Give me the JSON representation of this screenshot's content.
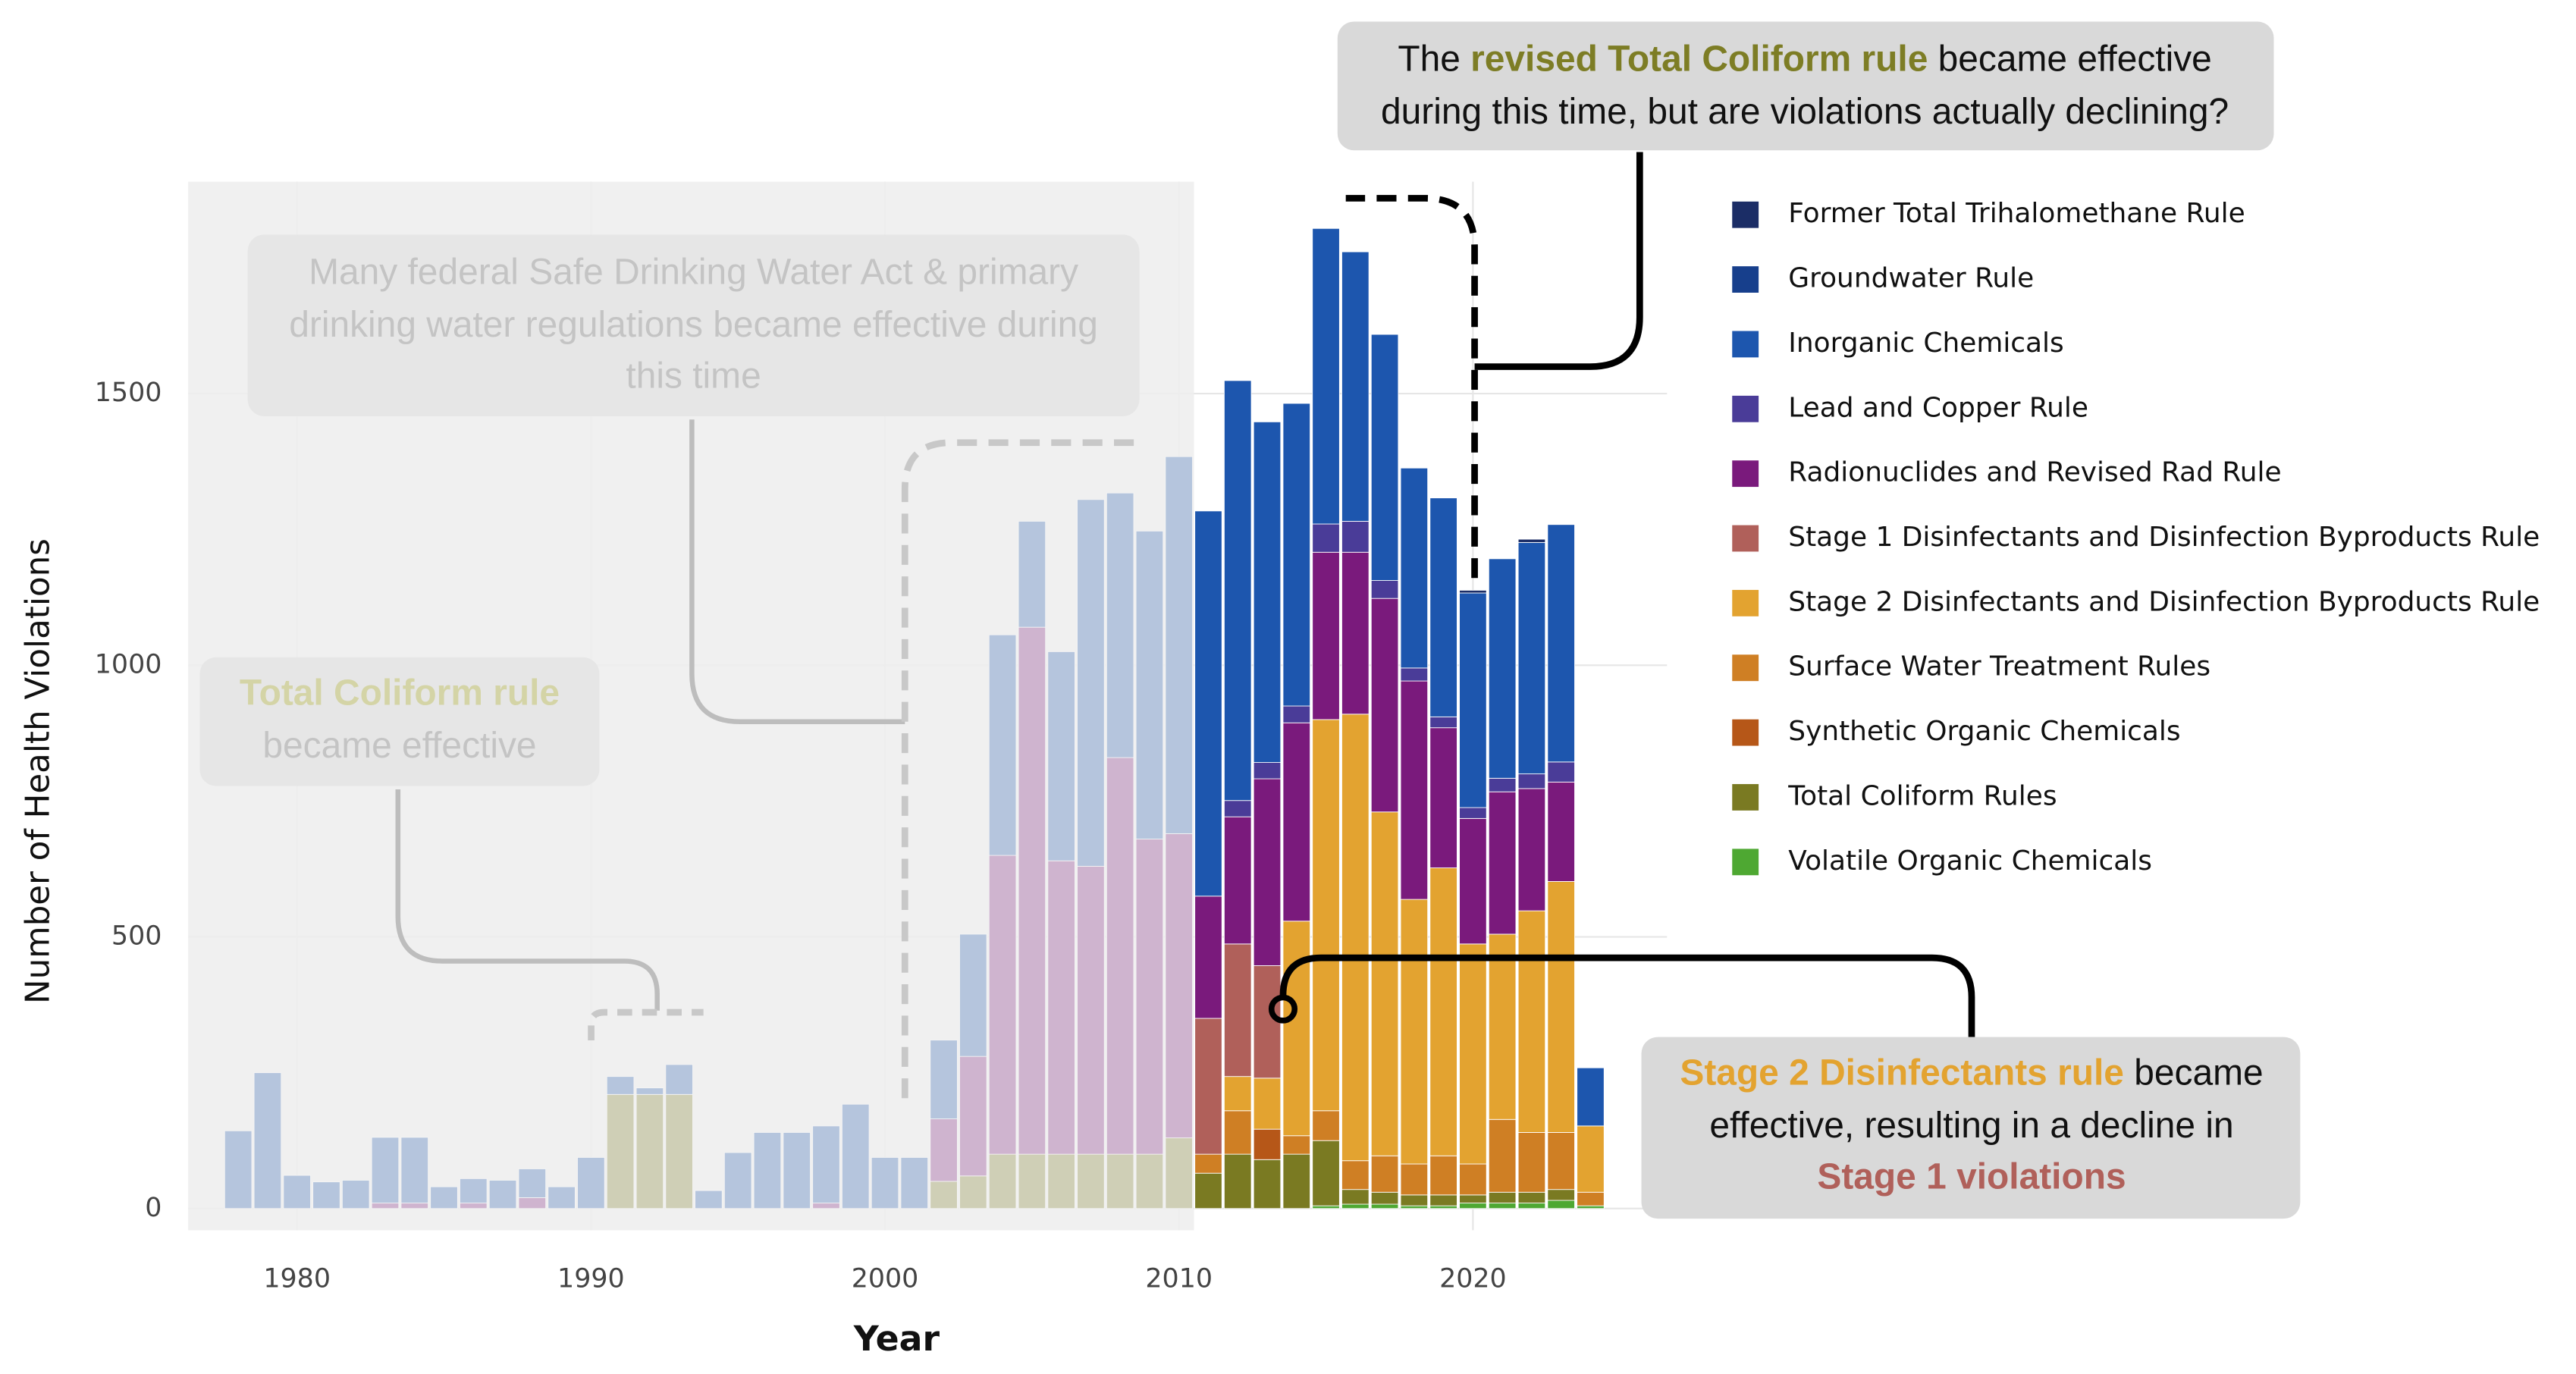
{
  "chart_data": {
    "type": "stacked_bar",
    "xlabel": "Year",
    "ylabel": "Number of Health Violations",
    "x": [
      1978,
      1979,
      1980,
      1981,
      1982,
      1983,
      1984,
      1985,
      1986,
      1987,
      1988,
      1989,
      1990,
      1991,
      1992,
      1993,
      1994,
      1995,
      1996,
      1997,
      1998,
      1999,
      2000,
      2001,
      2002,
      2003,
      2004,
      2005,
      2006,
      2007,
      2008,
      2009,
      2010,
      2011,
      2012,
      2013,
      2014,
      2015,
      2016,
      2017,
      2018,
      2019,
      2020,
      2021,
      2022,
      2023,
      2024
    ],
    "xlim": [
      1976.3,
      2026.6
    ],
    "xticks": [
      1980,
      1990,
      2000,
      2010,
      2020
    ],
    "ylim": [
      -40,
      1890
    ],
    "yticks": [
      0,
      500,
      1000,
      1500
    ],
    "grid": true,
    "legend": "right",
    "series": [
      {
        "name": "Former Total Trihalomethane Rule",
        "color": "#1b2d66",
        "values": [
          0,
          0,
          0,
          0,
          0,
          0,
          0,
          0,
          0,
          0,
          0,
          0,
          0,
          0,
          0,
          0,
          0,
          0,
          0,
          0,
          0,
          0,
          0,
          0,
          0,
          0,
          0,
          0,
          0,
          0,
          0,
          0,
          0,
          0,
          0,
          0,
          0,
          0,
          0,
          0,
          0,
          0,
          5,
          0,
          6,
          0,
          0
        ]
      },
      {
        "name": "Groundwater Rule",
        "color": "#173f8c",
        "values": [
          0,
          0,
          0,
          0,
          0,
          0,
          0,
          0,
          0,
          0,
          0,
          0,
          0,
          0,
          0,
          0,
          0,
          0,
          0,
          0,
          0,
          0,
          0,
          0,
          0,
          0,
          0,
          0,
          0,
          0,
          0,
          0,
          0,
          0,
          0,
          0,
          0,
          0,
          0,
          0,
          0,
          0,
          0,
          0,
          0,
          0,
          0
        ]
      },
      {
        "name": "Inorganic Chemicals",
        "color": "#1d56ae",
        "values": [
          143,
          250,
          61,
          49,
          52,
          121,
          121,
          40,
          45,
          52,
          53,
          40,
          94,
          33,
          12,
          55,
          33,
          103,
          140,
          140,
          142,
          192,
          94,
          94,
          145,
          225,
          406,
          195,
          385,
          675,
          487,
          567,
          694,
          709,
          773,
          627,
          557,
          544,
          496,
          453,
          368,
          403,
          395,
          404,
          426,
          437,
          107
        ]
      },
      {
        "name": "Lead and Copper Rule",
        "color": "#4a3c98",
        "values": [
          0,
          0,
          0,
          0,
          0,
          0,
          0,
          0,
          0,
          0,
          0,
          0,
          0,
          0,
          0,
          0,
          0,
          0,
          0,
          0,
          0,
          0,
          0,
          0,
          0,
          0,
          0,
          0,
          0,
          0,
          0,
          0,
          0,
          0,
          30,
          30,
          31,
          52,
          57,
          33,
          24,
          20,
          20,
          25,
          27,
          37,
          0
        ]
      },
      {
        "name": "Radionuclides and Revised Rad Rule",
        "color": "#7a1a7c",
        "values": [
          0,
          0,
          0,
          0,
          0,
          10,
          10,
          0,
          10,
          0,
          20,
          0,
          0,
          0,
          0,
          0,
          0,
          0,
          0,
          0,
          10,
          0,
          0,
          0,
          115,
          220,
          550,
          970,
          540,
          530,
          730,
          580,
          560,
          225,
          234,
          344,
          365,
          308,
          298,
          393,
          402,
          258,
          231,
          262,
          225,
          183,
          0
        ]
      },
      {
        "name": "Stage 1 Disinfectants and Disinfection Byproducts Rule",
        "color": "#b0605a",
        "values": [
          0,
          0,
          0,
          0,
          0,
          0,
          0,
          0,
          0,
          0,
          0,
          0,
          0,
          0,
          0,
          0,
          0,
          0,
          0,
          0,
          0,
          0,
          0,
          0,
          0,
          0,
          0,
          0,
          0,
          0,
          0,
          0,
          0,
          250,
          244,
          207,
          0,
          0,
          0,
          0,
          0,
          0,
          0,
          0,
          0,
          0,
          0
        ]
      },
      {
        "name": "Stage 2 Disinfectants and Disinfection Byproducts Rule",
        "color": "#e3a330",
        "values": [
          0,
          0,
          0,
          0,
          0,
          0,
          0,
          0,
          0,
          0,
          0,
          0,
          0,
          0,
          0,
          0,
          0,
          0,
          0,
          0,
          0,
          0,
          0,
          0,
          0,
          0,
          0,
          0,
          0,
          0,
          0,
          0,
          0,
          0,
          63,
          94,
          395,
          720,
          822,
          633,
          487,
          530,
          405,
          341,
          408,
          462,
          122
        ]
      },
      {
        "name": "Surface Water Treatment Rules",
        "color": "#cf7f24",
        "values": [
          0,
          0,
          0,
          0,
          0,
          0,
          0,
          0,
          0,
          0,
          0,
          0,
          0,
          0,
          0,
          0,
          0,
          0,
          0,
          0,
          0,
          0,
          0,
          0,
          0,
          0,
          0,
          0,
          0,
          0,
          0,
          0,
          0,
          35,
          80,
          0,
          34,
          55,
          53,
          67,
          57,
          72,
          57,
          134,
          110,
          105,
          25
        ]
      },
      {
        "name": "Synthetic Organic Chemicals",
        "color": "#b65718",
        "values": [
          0,
          0,
          0,
          0,
          0,
          0,
          0,
          0,
          0,
          0,
          0,
          0,
          0,
          0,
          0,
          0,
          0,
          0,
          0,
          0,
          0,
          0,
          0,
          0,
          0,
          0,
          0,
          0,
          0,
          0,
          0,
          0,
          0,
          0,
          0,
          56,
          0,
          0,
          0,
          0,
          0,
          0,
          0,
          0,
          0,
          0,
          0
        ]
      },
      {
        "name": "Total Coliform Rules",
        "color": "#7a7a22",
        "values": [
          0,
          0,
          0,
          0,
          0,
          0,
          0,
          0,
          0,
          0,
          0,
          0,
          0,
          210,
          210,
          210,
          0,
          0,
          0,
          0,
          0,
          0,
          0,
          0,
          50,
          60,
          100,
          100,
          100,
          100,
          100,
          100,
          130,
          65,
          100,
          90,
          100,
          120,
          27,
          22,
          20,
          20,
          15,
          20,
          20,
          20,
          0
        ]
      },
      {
        "name": "Volatile Organic Chemicals",
        "color": "#4ea832",
        "values": [
          0,
          0,
          0,
          0,
          0,
          0,
          0,
          0,
          0,
          0,
          0,
          0,
          0,
          0,
          0,
          0,
          0,
          0,
          0,
          0,
          0,
          0,
          0,
          0,
          0,
          0,
          0,
          0,
          0,
          0,
          0,
          0,
          0,
          0,
          0,
          0,
          0,
          5,
          8,
          8,
          5,
          5,
          10,
          10,
          10,
          15,
          5
        ]
      }
    ],
    "annotations": [
      {
        "lines": [
          [
            "The ",
            "revised Total Coliform rule",
            " became effective"
          ],
          [
            "during this time, but are violations actually declining?"
          ]
        ]
      },
      {
        "lines": [
          [
            "Many federal Safe Drinking Water Act & primary"
          ],
          [
            "drinking water regulations became effective during"
          ],
          [
            "this time"
          ]
        ]
      },
      {
        "lines": [
          [
            "Total Coliform rule"
          ],
          [
            "became effective"
          ]
        ]
      },
      {
        "lines": [
          [
            "Stage 2 Disinfectants rule",
            " became"
          ],
          [
            "effective, resulting in a decline in"
          ],
          [
            "Stage 1 violations"
          ]
        ]
      }
    ]
  }
}
